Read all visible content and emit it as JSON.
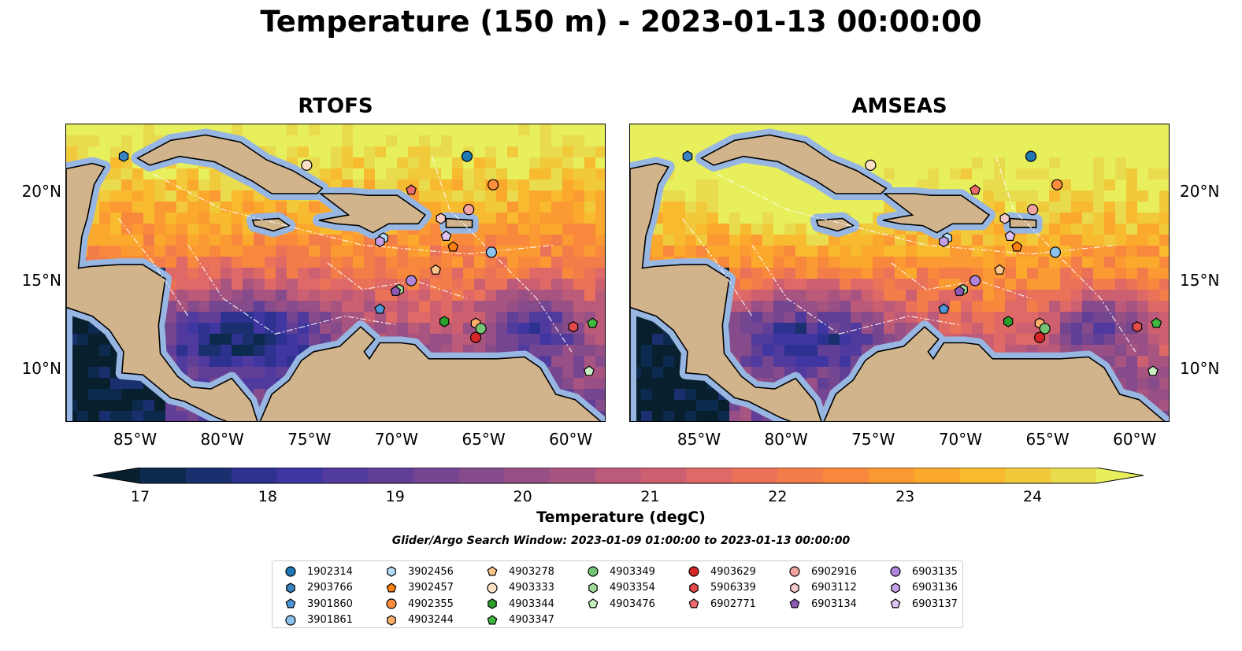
{
  "title": "Temperature (150 m) - 2023-01-13 00:00:00",
  "panels": [
    {
      "name": "RTOFS"
    },
    {
      "name": "AMSEAS"
    }
  ],
  "map_extent": {
    "lon_min": -89,
    "lon_max": -58,
    "lat_min": 7,
    "lat_max": 23.8
  },
  "lat_ticks": [
    "20°N",
    "15°N",
    "10°N"
  ],
  "lat_values": [
    20,
    15,
    10
  ],
  "lon_ticks": [
    "85°W",
    "80°W",
    "75°W",
    "70°W",
    "65°W",
    "60°W"
  ],
  "lon_values": [
    -85,
    -80,
    -75,
    -70,
    -65,
    -60
  ],
  "colorbar": {
    "label": "Temperature (degC)",
    "min": 17,
    "max": 24.5,
    "ticks": [
      "17",
      "18",
      "19",
      "20",
      "21",
      "22",
      "23",
      "24"
    ],
    "tick_values": [
      17,
      18,
      19,
      20,
      21,
      22,
      23,
      24
    ],
    "extend": "both",
    "colors": [
      "#08202e",
      "#0b2a4e",
      "#1a2f6e",
      "#2d3290",
      "#3f36a2",
      "#513a9e",
      "#623f97",
      "#744590",
      "#854b8a",
      "#974f85",
      "#a85480",
      "#bb5a79",
      "#cd6070",
      "#de6966",
      "#ea7258",
      "#f37d49",
      "#f8893c",
      "#fb9932",
      "#fba92c",
      "#f8ba2e",
      "#f1ca3c",
      "#e9db4e",
      "#e7ef5c"
    ]
  },
  "search_window": "Glider/Argo Search Window: 2023-01-09 01:00:00 to 2023-01-13 00:00:00",
  "colors": {
    "land": "#d2b48c",
    "shelf": "#97b6e1",
    "coast": "#000000"
  },
  "platforms": [
    {
      "id": "1902314",
      "shape": "circle",
      "color": "#1f77b4",
      "lon": -66,
      "lat": 22
    },
    {
      "id": "2903766",
      "shape": "hexagon",
      "color": "#3b84c4",
      "lon": -85.7,
      "lat": 22
    },
    {
      "id": "3901860",
      "shape": "pentagon",
      "color": "#4b96d6",
      "lon": -71,
      "lat": 13.4
    },
    {
      "id": "3901861",
      "shape": "circle",
      "color": "#8cc2ee",
      "lon": -64.6,
      "lat": 16.6
    },
    {
      "id": "3902456",
      "shape": "hexagon",
      "color": "#b4dbf7",
      "lon": -70.8,
      "lat": 17.4
    },
    {
      "id": "3902457",
      "shape": "pentagon",
      "color": "#ff7f0e",
      "lon": -66.8,
      "lat": 16.9
    },
    {
      "id": "4902355",
      "shape": "circle",
      "color": "#fd8d3c",
      "lon": -64.5,
      "lat": 20.4
    },
    {
      "id": "4903244",
      "shape": "hexagon",
      "color": "#fdae6b",
      "lon": -65.5,
      "lat": 12.6
    },
    {
      "id": "4903278",
      "shape": "pentagon",
      "color": "#fdc58a",
      "lon": -67.8,
      "lat": 15.6
    },
    {
      "id": "4903333",
      "shape": "circle",
      "color": "#fde0c6",
      "lon": -75.2,
      "lat": 21.5
    },
    {
      "id": "4903344",
      "shape": "hexagon",
      "color": "#2ca02c",
      "lon": -67.3,
      "lat": 12.7
    },
    {
      "id": "4903347",
      "shape": "pentagon",
      "color": "#3fba3f",
      "lon": -58.8,
      "lat": 12.6
    },
    {
      "id": "4903349",
      "shape": "circle",
      "color": "#74c476",
      "lon": -65.2,
      "lat": 12.3
    },
    {
      "id": "4903354",
      "shape": "hexagon",
      "color": "#a1d99b",
      "lon": -69.9,
      "lat": 14.5
    },
    {
      "id": "4903476",
      "shape": "pentagon",
      "color": "#c7f0c0",
      "lon": -59,
      "lat": 9.9
    },
    {
      "id": "4903629",
      "shape": "circle",
      "color": "#d62728",
      "lon": -65.5,
      "lat": 11.8
    },
    {
      "id": "5906339",
      "shape": "hexagon",
      "color": "#e34a4a",
      "lon": -59.9,
      "lat": 12.4
    },
    {
      "id": "6902771",
      "shape": "pentagon",
      "color": "#ef6a6a",
      "lon": -69.2,
      "lat": 20.1
    },
    {
      "id": "6902916",
      "shape": "circle",
      "color": "#f4a3a3",
      "lon": -65.9,
      "lat": 19.0
    },
    {
      "id": "6903112",
      "shape": "hexagon",
      "color": "#f8c9c9",
      "lon": -67.5,
      "lat": 18.5
    },
    {
      "id": "6903134",
      "shape": "pentagon",
      "color": "#8c5ab4",
      "lon": -70.1,
      "lat": 14.4
    },
    {
      "id": "6903135",
      "shape": "circle",
      "color": "#b184dc",
      "lon": -69.2,
      "lat": 15.0
    },
    {
      "id": "6903136",
      "shape": "hexagon",
      "color": "#c5a0e6",
      "lon": -71.0,
      "lat": 17.2
    },
    {
      "id": "6903137",
      "shape": "pentagon",
      "color": "#dcc3f3",
      "lon": -67.2,
      "lat": 17.5
    }
  ]
}
